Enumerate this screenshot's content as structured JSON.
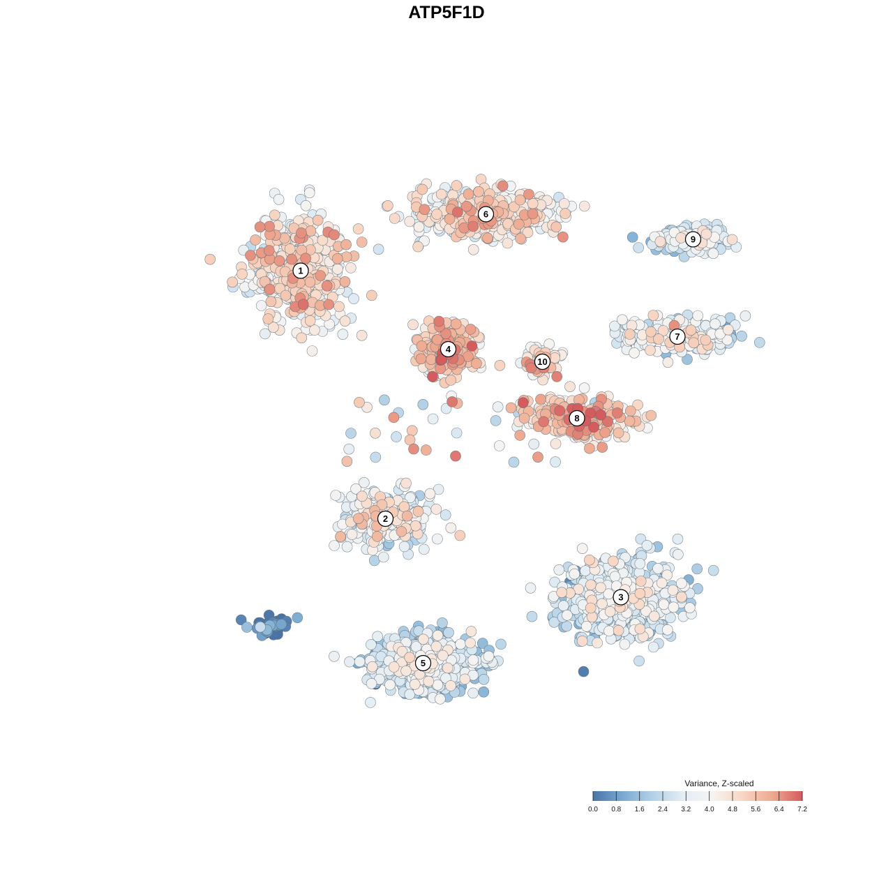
{
  "chart_data": {
    "type": "scatter",
    "title": "ATP5F1D",
    "xlabel": "",
    "ylabel": "",
    "grid": false,
    "legend": {
      "title": "Variance, Z-scaled",
      "placement": "bottom-right",
      "range": [
        0,
        7.2
      ],
      "ticks": [
        "0.0",
        "0.8",
        "1.6",
        "2.4",
        "3.2",
        "4.0",
        "4.8",
        "5.6",
        "6.4",
        "7.2"
      ],
      "colors": [
        "#4a74a8",
        "#7aaad1",
        "#b3d1e6",
        "#e3edf4",
        "#f6f4f2",
        "#f8d6c3",
        "#eea98f",
        "#d45b5e"
      ]
    },
    "clusters": [
      {
        "label": "1",
        "x": -0.52,
        "y": 0.56,
        "spread": [
          0.14,
          0.16
        ],
        "count": 520,
        "mean": 4.3
      },
      {
        "label": "2",
        "x": -0.25,
        "y": -0.23,
        "spread": [
          0.13,
          0.08
        ],
        "count": 280,
        "mean": 3.6
      },
      {
        "label": "3",
        "x": 0.5,
        "y": -0.48,
        "spread": [
          0.17,
          0.11
        ],
        "count": 600,
        "mean": 2.7
      },
      {
        "label": "4",
        "x": -0.05,
        "y": 0.31,
        "spread": [
          0.08,
          0.07
        ],
        "count": 300,
        "mean": 5.0
      },
      {
        "label": "5",
        "x": -0.13,
        "y": -0.69,
        "spread": [
          0.15,
          0.08
        ],
        "count": 700,
        "mean": 2.4
      },
      {
        "label": "6",
        "x": 0.07,
        "y": 0.74,
        "spread": [
          0.2,
          0.07
        ],
        "count": 480,
        "mean": 4.2
      },
      {
        "label": "7",
        "x": 0.68,
        "y": 0.35,
        "spread": [
          0.17,
          0.05
        ],
        "count": 260,
        "mean": 3.1
      },
      {
        "label": "8",
        "x": 0.36,
        "y": 0.09,
        "spread": [
          0.15,
          0.06
        ],
        "count": 240,
        "mean": 5.1
      },
      {
        "label": "9",
        "x": 0.73,
        "y": 0.66,
        "spread": [
          0.12,
          0.04
        ],
        "count": 150,
        "mean": 2.6
      },
      {
        "label": "10",
        "x": 0.25,
        "y": 0.27,
        "spread": [
          0.05,
          0.05
        ],
        "count": 60,
        "mean": 4.5
      },
      {
        "label": "",
        "x": -0.62,
        "y": -0.58,
        "spread": [
          0.05,
          0.03
        ],
        "count": 45,
        "mean": 0.4
      }
    ]
  }
}
